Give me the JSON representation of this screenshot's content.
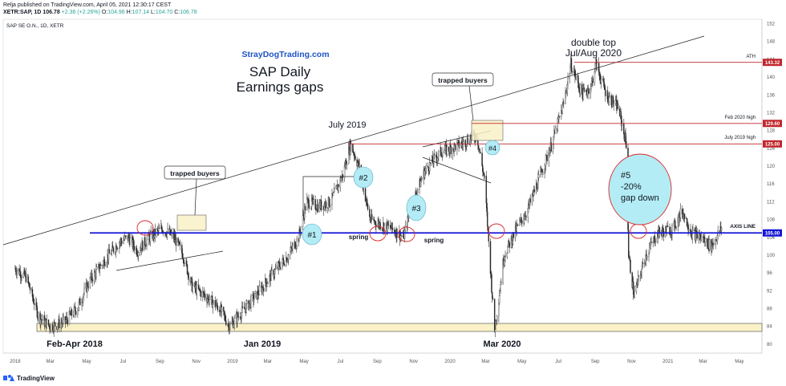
{
  "header": {
    "published": "Relja published on TradingView.com, April 05, 2021 12:30:17 CEST",
    "ohlc_prefix": "XETR:SAP, 1D",
    "close_val": "106.78",
    "change": "+2.36 (+2.26%)",
    "o_label": "O:",
    "o_val": "104.96",
    "h_label": "H:",
    "h_val": "107.14",
    "l_label": "L:",
    "l_val": "104.70",
    "c_label": "C:",
    "c_val": "106.78"
  },
  "symbol_label": "SAP SE O.N., 1D, XETR",
  "footer": {
    "brand": "TradingView"
  },
  "colors": {
    "up": "#26a69a",
    "down": "#ef5350",
    "axis_line": "#1515d6",
    "resistance": "#c0262c",
    "circle": "#d92b2b",
    "bubble": "#b3ecf5",
    "box": "#faf1c7"
  },
  "chart_data": {
    "type": "candlestick",
    "title": "SAP Daily",
    "subtitle": "Earnings gaps",
    "watermark": "StrayDogTrading.com",
    "ylim": [
      78,
      153
    ],
    "y_ticks": [
      80,
      84,
      88,
      92,
      96,
      100,
      104,
      108,
      112,
      116,
      120,
      124,
      128,
      132,
      136,
      140,
      144,
      148,
      152
    ],
    "x_ticks": [
      "2018",
      "Mar",
      "May",
      "Jul",
      "Sep",
      "Nov",
      "2019",
      "Mar",
      "May",
      "Jul",
      "Sep",
      "Nov",
      "2020",
      "Mar",
      "May",
      "Jul",
      "Sep",
      "Nov",
      "2021",
      "Mar",
      "May"
    ],
    "price_path": [
      [
        "2018-01-01",
        97
      ],
      [
        "2018-01-20",
        95
      ],
      [
        "2018-02-10",
        86
      ],
      [
        "2018-03-01",
        84
      ],
      [
        "2018-03-25",
        85
      ],
      [
        "2018-04-15",
        88
      ],
      [
        "2018-05-05",
        94
      ],
      [
        "2018-06-01",
        99
      ],
      [
        "2018-06-25",
        103
      ],
      [
        "2018-07-10",
        104
      ],
      [
        "2018-07-25",
        101
      ],
      [
        "2018-08-15",
        104
      ],
      [
        "2018-09-05",
        106
      ],
      [
        "2018-09-25",
        104
      ],
      [
        "2018-10-10",
        100
      ],
      [
        "2018-10-25",
        93
      ],
      [
        "2018-11-15",
        91
      ],
      [
        "2018-12-10",
        88
      ],
      [
        "2018-12-27",
        84
      ],
      [
        "2019-01-15",
        87
      ],
      [
        "2019-02-10",
        91
      ],
      [
        "2019-03-10",
        96
      ],
      [
        "2019-04-05",
        100
      ],
      [
        "2019-04-22",
        104
      ],
      [
        "2019-05-05",
        112
      ],
      [
        "2019-05-25",
        111
      ],
      [
        "2019-06-15",
        112
      ],
      [
        "2019-07-05",
        118
      ],
      [
        "2019-07-18",
        125
      ],
      [
        "2019-08-01",
        120
      ],
      [
        "2019-08-20",
        108
      ],
      [
        "2019-09-05",
        107
      ],
      [
        "2019-09-25",
        106
      ],
      [
        "2019-10-15",
        104
      ],
      [
        "2019-10-28",
        111
      ],
      [
        "2019-11-20",
        119
      ],
      [
        "2019-12-15",
        123
      ],
      [
        "2020-01-20",
        125
      ],
      [
        "2020-02-15",
        127
      ],
      [
        "2020-02-28",
        117
      ],
      [
        "2020-03-16",
        83
      ],
      [
        "2020-04-01",
        100
      ],
      [
        "2020-04-22",
        106
      ],
      [
        "2020-05-10",
        110
      ],
      [
        "2020-06-01",
        118
      ],
      [
        "2020-06-20",
        125
      ],
      [
        "2020-07-10",
        134
      ],
      [
        "2020-07-22",
        143
      ],
      [
        "2020-08-10",
        136
      ],
      [
        "2020-08-25",
        138
      ],
      [
        "2020-09-02",
        143
      ],
      [
        "2020-09-20",
        136
      ],
      [
        "2020-10-10",
        133
      ],
      [
        "2020-10-23",
        125
      ],
      [
        "2020-10-27",
        100
      ],
      [
        "2020-11-05",
        91
      ],
      [
        "2020-11-25",
        100
      ],
      [
        "2020-12-15",
        105
      ],
      [
        "2021-01-10",
        106
      ],
      [
        "2021-01-25",
        110
      ],
      [
        "2021-02-10",
        105
      ],
      [
        "2021-02-25",
        104
      ],
      [
        "2021-03-15",
        102
      ],
      [
        "2021-04-01",
        106
      ]
    ],
    "levels": [
      {
        "name": "ATH",
        "value": 143.32,
        "label": "143.32"
      },
      {
        "name": "Feb 2020 high",
        "value": 129.6,
        "label": "129.60"
      },
      {
        "name": "July 2019 high",
        "value": 125.0,
        "label": "125.00"
      },
      {
        "name": "AXIS LINE",
        "value": 105.0,
        "label": "105.00"
      }
    ],
    "annotations": {
      "double_top": "double top",
      "double_top_dates": "Jul/Aug 2020",
      "july_2019": "July 2019",
      "trapped1": "trapped buyers",
      "trapped2": "trapped buyers",
      "spring1": "spring",
      "spring2": "spring",
      "feb_apr": "Feb-Apr 2018",
      "jan_2019": "Jan 2019",
      "mar_2020": "Mar 2020",
      "gap5_l1": "#5",
      "gap5_l2": "-20%",
      "gap5_l3": "gap down",
      "b1": "#1",
      "b2": "#2",
      "b3": "#3",
      "b4": "#4",
      "axis_label": "AXIS LINE",
      "ath_label": "ATH",
      "feb_label": "Feb 2020 high",
      "jul_label": "July 2019 high"
    }
  }
}
